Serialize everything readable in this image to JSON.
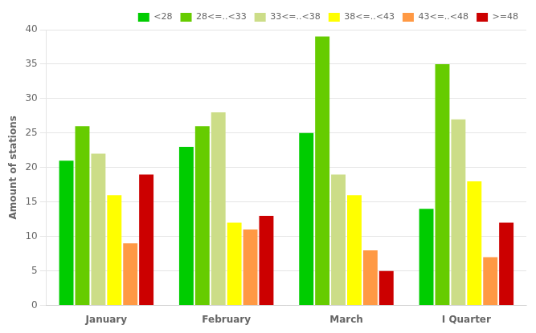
{
  "chart_data": {
    "type": "bar",
    "ylabel": "Amount of stations",
    "categories": [
      "January",
      "February",
      "March",
      "I Quarter"
    ],
    "series": [
      {
        "name": "<28",
        "color": "#00cc00",
        "values": [
          21,
          23,
          25,
          14
        ]
      },
      {
        "name": "28<=..<33",
        "color": "#66cc00",
        "values": [
          26,
          26,
          39,
          35
        ]
      },
      {
        "name": "33<=..<38",
        "color": "#ccdd88",
        "values": [
          22,
          28,
          19,
          27
        ]
      },
      {
        "name": "38<=..<43",
        "color": "#ffff00",
        "values": [
          16,
          12,
          16,
          18
        ]
      },
      {
        "name": "43<=..<48",
        "color": "#ff9944",
        "values": [
          9,
          11,
          8,
          7
        ]
      },
      {
        "name": ">=48",
        "color": "#cc0000",
        "values": [
          19,
          13,
          5,
          12
        ]
      }
    ],
    "ylim": [
      0,
      40
    ],
    "yticks": [
      0,
      5,
      10,
      15,
      20,
      25,
      30,
      35,
      40
    ],
    "grid": true,
    "legend": "upper right"
  }
}
